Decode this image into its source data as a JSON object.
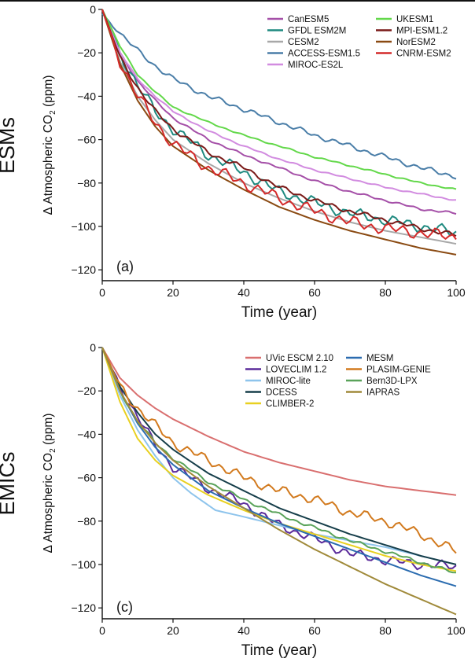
{
  "chart_data": [
    {
      "type": "line",
      "panel_label": "(a)",
      "row_label": "ESMs",
      "xlabel": "Time (year)",
      "ylabel_prefix": "Δ Atmospheric CO",
      "ylabel_sub": "2",
      "ylabel_suffix": " (ppm)",
      "xlim": [
        0,
        100
      ],
      "ylim": [
        -125,
        0
      ],
      "xticks": [
        0,
        20,
        40,
        60,
        80,
        100
      ],
      "yticks": [
        0,
        -20,
        -40,
        -60,
        -80,
        -100,
        -120
      ],
      "legend_position": "top-right",
      "series": [
        {
          "name": "CanESM5",
          "color": "#a550a8",
          "noise": 0.6,
          "x": [
            0,
            5,
            10,
            15,
            20,
            30,
            40,
            50,
            60,
            70,
            80,
            90,
            100
          ],
          "y": [
            0,
            -20,
            -33,
            -42,
            -50,
            -60,
            -67,
            -73,
            -79,
            -84,
            -88,
            -92,
            -94
          ]
        },
        {
          "name": "GFDL ESM2M",
          "color": "#1f8a80",
          "noise": 3,
          "x": [
            0,
            5,
            10,
            15,
            20,
            30,
            40,
            50,
            60,
            70,
            80,
            90,
            100
          ],
          "y": [
            0,
            -20,
            -35,
            -47,
            -55,
            -67,
            -75,
            -84,
            -89,
            -94,
            -97,
            -100,
            -103
          ]
        },
        {
          "name": "CESM2",
          "color": "#a8a8a8",
          "noise": 0,
          "x": [
            0,
            5,
            10,
            15,
            20,
            30,
            40,
            50,
            60,
            70,
            80,
            90,
            100
          ],
          "y": [
            0,
            -24,
            -40,
            -51,
            -60,
            -71,
            -80,
            -87,
            -93,
            -98,
            -102,
            -105,
            -108
          ]
        },
        {
          "name": "ACCESS-ESM1.5",
          "color": "#4a7ea8",
          "noise": 1.4,
          "x": [
            0,
            5,
            10,
            15,
            20,
            30,
            40,
            50,
            60,
            70,
            80,
            90,
            100
          ],
          "y": [
            -2,
            -11,
            -19,
            -26,
            -32,
            -40,
            -46,
            -52,
            -58,
            -63,
            -68,
            -73,
            -77
          ]
        },
        {
          "name": "MIROC-ES2L",
          "color": "#d28ce0",
          "noise": 0.4,
          "x": [
            0,
            5,
            10,
            15,
            20,
            30,
            40,
            50,
            60,
            70,
            80,
            90,
            100
          ],
          "y": [
            0,
            -20,
            -32,
            -40,
            -47,
            -56,
            -63,
            -69,
            -74,
            -78,
            -82,
            -85,
            -88
          ]
        },
        {
          "name": "UKESM1",
          "color": "#63d84a",
          "noise": 0.4,
          "x": [
            0,
            5,
            10,
            15,
            20,
            30,
            40,
            50,
            60,
            70,
            80,
            90,
            100
          ],
          "y": [
            0,
            -17,
            -30,
            -38,
            -45,
            -52,
            -58,
            -63,
            -68,
            -72,
            -76,
            -80,
            -83
          ]
        },
        {
          "name": "MPI-ESM1.2",
          "color": "#7a1a18",
          "noise": 1.3,
          "x": [
            0,
            5,
            10,
            15,
            20,
            30,
            40,
            50,
            60,
            70,
            80,
            90,
            100
          ],
          "y": [
            0,
            -22,
            -36,
            -47,
            -55,
            -66,
            -73,
            -82,
            -88,
            -93,
            -97,
            -101,
            -104
          ]
        },
        {
          "name": "NorESM2",
          "color": "#8a4a12",
          "noise": 0,
          "x": [
            0,
            5,
            10,
            15,
            20,
            30,
            40,
            50,
            60,
            70,
            80,
            90,
            100
          ],
          "y": [
            0,
            -25,
            -42,
            -54,
            -63,
            -74,
            -83,
            -91,
            -97,
            -102,
            -106,
            -110,
            -113
          ]
        },
        {
          "name": "CNRM-ESM2",
          "color": "#d42a2a",
          "noise": 3.2,
          "x": [
            0,
            5,
            10,
            15,
            20,
            30,
            40,
            50,
            60,
            70,
            80,
            90,
            100
          ],
          "y": [
            0,
            -24,
            -40,
            -52,
            -62,
            -73,
            -80,
            -87,
            -93,
            -98,
            -101,
            -103,
            -105
          ]
        }
      ]
    },
    {
      "type": "line",
      "panel_label": "(c)",
      "row_label": "EMICs",
      "xlabel": "Time (year)",
      "ylabel_prefix": "Δ Atmospheric CO",
      "ylabel_sub": "2",
      "ylabel_suffix": " (ppm)",
      "xlim": [
        0,
        100
      ],
      "ylim": [
        -125,
        0
      ],
      "xticks": [
        0,
        20,
        40,
        60,
        80,
        100
      ],
      "yticks": [
        0,
        -20,
        -40,
        -60,
        -80,
        -100,
        -120
      ],
      "legend_position": "top-right",
      "series": [
        {
          "name": "UVic ESCM 2.10",
          "color": "#d96f6f",
          "noise": 0,
          "x": [
            0,
            5,
            10,
            15,
            20,
            30,
            40,
            50,
            60,
            70,
            80,
            90,
            100
          ],
          "y": [
            0,
            -14,
            -22,
            -28,
            -33,
            -41,
            -48,
            -53,
            -57,
            -61,
            -64,
            -66,
            -68
          ]
        },
        {
          "name": "LOVECLIM 1.2",
          "color": "#5a2a9a",
          "noise": 2.6,
          "x": [
            0,
            5,
            10,
            15,
            20,
            30,
            40,
            50,
            60,
            70,
            80,
            90,
            100
          ],
          "y": [
            0,
            -18,
            -32,
            -45,
            -55,
            -65,
            -72,
            -82,
            -88,
            -95,
            -98,
            -100,
            -101
          ]
        },
        {
          "name": "MIROC-lite",
          "color": "#8ec4ec",
          "noise": 0,
          "x": [
            0,
            5,
            10,
            15,
            20,
            25,
            32,
            40,
            50,
            60,
            70,
            80,
            90,
            100
          ],
          "y": [
            0,
            -22,
            -38,
            -50,
            -60,
            -67,
            -75,
            -78,
            -82,
            -86,
            -89,
            -92,
            -96,
            -100
          ]
        },
        {
          "name": "DCESS",
          "color": "#163e4a",
          "noise": 0,
          "x": [
            0,
            5,
            10,
            15,
            20,
            30,
            40,
            50,
            60,
            70,
            80,
            90,
            100
          ],
          "y": [
            0,
            -18,
            -30,
            -40,
            -47,
            -58,
            -66,
            -74,
            -80,
            -86,
            -91,
            -96,
            -100
          ]
        },
        {
          "name": "CLIMBER-2",
          "color": "#e8d020",
          "noise": 0,
          "x": [
            0,
            5,
            10,
            15,
            20,
            30,
            40,
            50,
            60,
            70,
            80,
            90,
            100
          ],
          "y": [
            0,
            -25,
            -42,
            -52,
            -59,
            -68,
            -75,
            -81,
            -86,
            -91,
            -96,
            -100,
            -103
          ]
        },
        {
          "name": "MESM",
          "color": "#2b6cb0",
          "noise": 0,
          "x": [
            0,
            5,
            10,
            15,
            20,
            30,
            40,
            50,
            60,
            70,
            80,
            90,
            100
          ],
          "y": [
            0,
            -20,
            -35,
            -46,
            -54,
            -66,
            -74,
            -81,
            -87,
            -93,
            -99,
            -105,
            -110
          ]
        },
        {
          "name": "PLASIM-GENIE",
          "color": "#d27a1e",
          "noise": 2.6,
          "x": [
            0,
            5,
            10,
            15,
            20,
            30,
            40,
            50,
            60,
            70,
            80,
            90,
            100
          ],
          "y": [
            0,
            -18,
            -28,
            -36,
            -44,
            -52,
            -60,
            -66,
            -70,
            -76,
            -80,
            -86,
            -94
          ]
        },
        {
          "name": "Bern3D-LPX",
          "color": "#5aa35a",
          "noise": 0.9,
          "x": [
            0,
            5,
            10,
            15,
            20,
            30,
            40,
            50,
            60,
            70,
            80,
            90,
            100
          ],
          "y": [
            0,
            -20,
            -34,
            -44,
            -51,
            -62,
            -70,
            -77,
            -83,
            -89,
            -94,
            -99,
            -104
          ]
        },
        {
          "name": "IAPRAS",
          "color": "#a08a3a",
          "noise": 0,
          "x": [
            0,
            5,
            10,
            15,
            20,
            30,
            40,
            50,
            60,
            70,
            80,
            90,
            100
          ],
          "y": [
            0,
            -20,
            -34,
            -44,
            -52,
            -64,
            -74,
            -84,
            -93,
            -101,
            -109,
            -116,
            -123
          ]
        }
      ]
    }
  ]
}
